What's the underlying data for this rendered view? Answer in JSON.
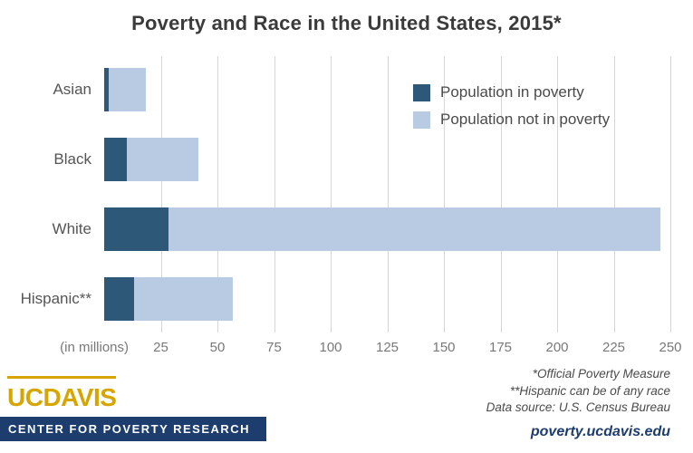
{
  "title": "Poverty and Race in the United States, 2015*",
  "chart_data": {
    "type": "bar",
    "orientation": "horizontal",
    "stacked": true,
    "title": "Poverty and Race in the United States, 2015*",
    "categories": [
      "Asian",
      "Black",
      "White",
      "Hispanic**"
    ],
    "series": [
      {
        "name": "Population in poverty",
        "color": "#2e5878",
        "values": [
          2.1,
          10.0,
          28.6,
          13.1
        ]
      },
      {
        "name": "Population not in poverty",
        "color": "#b8cbe3",
        "values": [
          16.2,
          31.6,
          216.9,
          43.7
        ]
      }
    ],
    "xlabel": "(in millions)",
    "ylabel": "",
    "xlim": [
      0,
      250
    ],
    "x_ticks": [
      25,
      50,
      75,
      100,
      125,
      150,
      175,
      200,
      225,
      250
    ],
    "grid": true,
    "legend_position": "upper-right-of-plot"
  },
  "axis": {
    "unit_label": "(in millions)"
  },
  "footer": {
    "notes": [
      "*Official Poverty Measure",
      "**Hispanic can be of any race",
      "Data source: U.S. Census Bureau"
    ],
    "website": "poverty.ucdavis.edu",
    "logo": {
      "wordmark": "UCDAVIS",
      "tagline": "CENTER FOR POVERTY RESEARCH"
    }
  },
  "colors": {
    "poverty": "#2e5878",
    "not_poverty": "#b8cbe3",
    "navy": "#1c3d6e",
    "gold": "#d6a500",
    "gridline": "#d6d6d6"
  }
}
